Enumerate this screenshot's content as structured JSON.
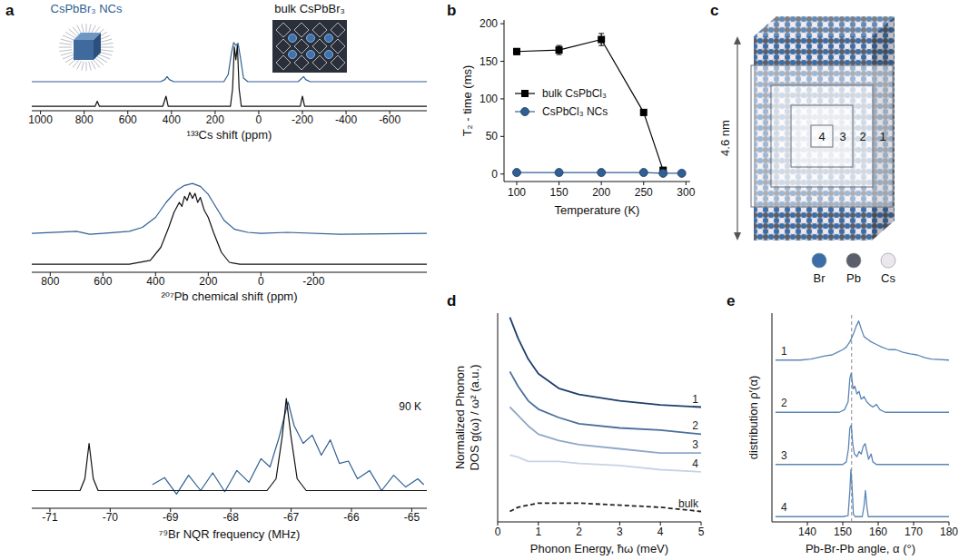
{
  "chart_data": [
    {
      "panel": "a",
      "type": "line",
      "xlabel": "¹³³Cs shift (ppm)",
      "xlim": [
        1040,
        -770
      ],
      "xticks": [
        1000,
        800,
        600,
        400,
        200,
        0,
        -200,
        -400,
        -600
      ],
      "ylim": [
        0,
        1
      ],
      "tick_labels": "x",
      "series": [
        {
          "name": "CsPbBr₃ NCs",
          "color": "#2f5f93",
          "x": [
            1040,
            450,
            430,
            420,
            410,
            390,
            160,
            140,
            125,
            115,
            105,
            95,
            85,
            70,
            50,
            -180,
            -195,
            -205,
            -215,
            -235,
            -770
          ],
          "values": [
            0.4,
            0.4,
            0.43,
            0.47,
            0.43,
            0.4,
            0.4,
            0.5,
            0.8,
            0.94,
            0.9,
            0.93,
            0.75,
            0.45,
            0.4,
            0.4,
            0.44,
            0.47,
            0.43,
            0.4,
            0.4
          ]
        },
        {
          "name": "bulk CsPbBr₃",
          "color": "#111111",
          "x": [
            1040,
            750,
            740,
            730,
            440,
            425,
            415,
            130,
            120,
            112,
            105,
            98,
            90,
            80,
            -190,
            -200,
            -210,
            -770
          ],
          "values": [
            0.06,
            0.06,
            0.13,
            0.06,
            0.06,
            0.2,
            0.06,
            0.06,
            0.3,
            0.88,
            0.7,
            0.9,
            0.3,
            0.06,
            0.06,
            0.2,
            0.06,
            0.06
          ]
        }
      ]
    },
    {
      "type": "line",
      "xlabel": "²⁰⁷Pb chemical shift (ppm)",
      "xlim": [
        870,
        -630
      ],
      "xticks": [
        800,
        600,
        400,
        200,
        0,
        -200
      ],
      "ylim": [
        0,
        1
      ],
      "tick_labels": "x",
      "series": [
        {
          "color": "#2f5f93",
          "x": [
            870,
            700,
            650,
            600,
            500,
            450,
            400,
            360,
            320,
            290,
            260,
            230,
            200,
            170,
            140,
            100,
            50,
            0,
            -100,
            -300,
            -630
          ],
          "values": [
            0.39,
            0.41,
            0.38,
            0.39,
            0.41,
            0.45,
            0.55,
            0.7,
            0.82,
            0.87,
            0.89,
            0.86,
            0.78,
            0.65,
            0.52,
            0.43,
            0.4,
            0.39,
            0.4,
            0.38,
            0.39
          ]
        },
        {
          "color": "#111111",
          "x": [
            870,
            500,
            420,
            380,
            350,
            330,
            310,
            300,
            290,
            280,
            270,
            260,
            250,
            240,
            230,
            215,
            200,
            180,
            150,
            120,
            80,
            -630
          ],
          "values": [
            0.08,
            0.08,
            0.12,
            0.25,
            0.45,
            0.6,
            0.7,
            0.66,
            0.76,
            0.72,
            0.8,
            0.74,
            0.79,
            0.7,
            0.75,
            0.62,
            0.55,
            0.4,
            0.2,
            0.1,
            0.08,
            0.08
          ]
        }
      ]
    },
    {
      "type": "line",
      "xlabel": "⁷⁹Br NQR frequency (MHz)",
      "xlim": [
        -71.3,
        -64.75
      ],
      "xticks": [
        -71,
        -70,
        -69,
        -68,
        -67,
        -66,
        -65
      ],
      "ylim": [
        0,
        1
      ],
      "tick_labels": "x",
      "annotations": [
        "90 K"
      ],
      "series": [
        {
          "color": "#2f5f93",
          "x": [
            -69.3,
            -69.1,
            -68.9,
            -68.7,
            -68.5,
            -68.3,
            -68.1,
            -67.9,
            -67.7,
            -67.5,
            -67.35,
            -67.2,
            -67.05,
            -66.95,
            -66.8,
            -66.65,
            -66.5,
            -66.35,
            -66.2,
            -66.05,
            -65.9,
            -65.7,
            -65.5,
            -65.3,
            -65.1,
            -64.9,
            -64.8
          ],
          "values": [
            0.2,
            0.26,
            0.12,
            0.28,
            0.15,
            0.3,
            0.14,
            0.32,
            0.22,
            0.42,
            0.35,
            0.6,
            0.9,
            0.7,
            0.55,
            0.62,
            0.45,
            0.58,
            0.38,
            0.4,
            0.25,
            0.32,
            0.15,
            0.28,
            0.18,
            0.25,
            0.2
          ]
        },
        {
          "color": "#111111",
          "x": [
            -71.3,
            -70.5,
            -70.42,
            -70.35,
            -70.28,
            -70.2,
            -67.4,
            -67.25,
            -67.15,
            -67.08,
            -67.0,
            -66.9,
            -66.75,
            -64.75
          ],
          "values": [
            0.15,
            0.15,
            0.25,
            0.55,
            0.25,
            0.15,
            0.15,
            0.25,
            0.6,
            0.93,
            0.6,
            0.25,
            0.15,
            0.15
          ]
        }
      ]
    },
    {
      "panel": "b",
      "type": "scatter",
      "xlabel": "Temperature (K)",
      "ylabel": "T₂ - time (ms)",
      "xlim": [
        85,
        305
      ],
      "ylim": [
        -10,
        205
      ],
      "xticks": [
        100,
        150,
        200,
        250,
        300
      ],
      "yticks": [
        0,
        50,
        100,
        150,
        200
      ],
      "legend": "center left",
      "series": [
        {
          "name": "bulk CsPbCl₃",
          "color": "#000000",
          "marker": "square",
          "line_style": "solid",
          "x": [
            100,
            150,
            200,
            250,
            273
          ],
          "values": [
            163,
            165,
            179,
            82,
            5
          ],
          "errors": [
            4,
            6,
            8,
            4,
            2
          ]
        },
        {
          "name": "CsPbCl₃ NCs",
          "color": "#2f5f93",
          "marker": "circle",
          "line_style": "solid",
          "x": [
            100,
            150,
            200,
            250,
            273,
            295
          ],
          "values": [
            2,
            2,
            2,
            2,
            1,
            1
          ]
        }
      ]
    },
    {
      "panel": "d",
      "type": "line",
      "xlabel": "Phonon Energy, ħω (meV)",
      "ylabel": [
        "Normalized Phonon",
        "DOS g(ω) / ω² (a.u.)"
      ],
      "xlim": [
        0,
        5
      ],
      "xticks": [
        0,
        1,
        2,
        3,
        4,
        5
      ],
      "ylim": [
        0,
        1
      ],
      "tick_labels": "x",
      "x": [
        0.3,
        0.5,
        0.75,
        1,
        1.5,
        2,
        3,
        4,
        5
      ],
      "series": [
        {
          "name": "1",
          "color": "#1f3f6b",
          "line_style": "solid",
          "values": [
            0.98,
            0.88,
            0.78,
            0.71,
            0.64,
            0.61,
            0.58,
            0.56,
            0.55
          ]
        },
        {
          "name": "2",
          "color": "#4a6f9c",
          "line_style": "solid",
          "values": [
            0.72,
            0.65,
            0.58,
            0.54,
            0.5,
            0.47,
            0.45,
            0.44,
            0.42
          ]
        },
        {
          "name": "3",
          "color": "#8ea8c9",
          "line_style": "solid",
          "values": [
            0.55,
            0.51,
            0.46,
            0.42,
            0.39,
            0.37,
            0.35,
            0.33,
            0.33
          ]
        },
        {
          "name": "4",
          "color": "#c6d4e6",
          "line_style": "solid",
          "values": [
            0.32,
            0.31,
            0.29,
            0.29,
            0.29,
            0.28,
            0.27,
            0.25,
            0.24
          ]
        },
        {
          "name": "bulk",
          "color": "#222222",
          "line_style": "dashed",
          "values": [
            0.05,
            0.07,
            0.08,
            0.09,
            0.09,
            0.09,
            0.08,
            0.07,
            0.05
          ]
        }
      ]
    },
    {
      "panel": "e",
      "type": "line",
      "xlabel": "Pb-Br-Pb angle, α (°)",
      "ylabel": "distribution ρ′(α)",
      "xlim": [
        130,
        180
      ],
      "xticks": [
        140,
        150,
        160,
        170,
        180
      ],
      "ylim": [
        0,
        4
      ],
      "tick_labels": "x",
      "color": "#5a86b5",
      "vline": 152.5,
      "series": [
        {
          "name": "1",
          "x": [
            131,
            138,
            141,
            143,
            145,
            147,
            148.5,
            150,
            151,
            152,
            153,
            153.8,
            154.5,
            155.2,
            156,
            157,
            158,
            159.5,
            161,
            163,
            165,
            167,
            169,
            171,
            173,
            175,
            180
          ],
          "values": [
            3.1,
            3.1,
            3.12,
            3.15,
            3.18,
            3.2,
            3.25,
            3.3,
            3.35,
            3.45,
            3.6,
            3.75,
            3.85,
            3.7,
            3.55,
            3.5,
            3.45,
            3.4,
            3.35,
            3.3,
            3.3,
            3.25,
            3.22,
            3.2,
            3.15,
            3.12,
            3.1
          ]
        },
        {
          "name": "2",
          "x": [
            131,
            149,
            150.5,
            151.5,
            152,
            152.4,
            152.9,
            153.4,
            154,
            154.6,
            155.2,
            156,
            156.8,
            157.5,
            158.5,
            159.5,
            160.5,
            162,
            180
          ],
          "values": [
            2.1,
            2.1,
            2.15,
            2.3,
            2.75,
            2.85,
            2.55,
            2.6,
            2.45,
            2.5,
            2.35,
            2.4,
            2.3,
            2.25,
            2.2,
            2.25,
            2.15,
            2.1,
            2.1
          ]
        },
        {
          "name": "3",
          "x": [
            131,
            150,
            151,
            151.6,
            152,
            152.4,
            152.8,
            153.3,
            154,
            154.6,
            155.2,
            155.8,
            156.3,
            156.8,
            157.3,
            158,
            158.5,
            159.5,
            180
          ],
          "values": [
            1.1,
            1.1,
            1.15,
            1.4,
            1.8,
            1.85,
            1.5,
            1.3,
            1.25,
            1.35,
            1.3,
            1.45,
            1.5,
            1.35,
            1.2,
            1.3,
            1.15,
            1.1,
            1.1
          ]
        },
        {
          "name": "4",
          "x": [
            131,
            150,
            151.5,
            152,
            152.3,
            152.6,
            153,
            153.5,
            155.5,
            156,
            156.4,
            156.8,
            157.2,
            180
          ],
          "values": [
            0.1,
            0.1,
            0.12,
            0.6,
            1.0,
            0.7,
            0.15,
            0.1,
            0.1,
            0.3,
            0.6,
            0.3,
            0.1,
            0.1
          ]
        }
      ]
    }
  ],
  "illustrations": {
    "panel": "c",
    "size_label": "4.6 nm",
    "shells": [
      "1",
      "2",
      "3",
      "4"
    ],
    "atoms": [
      {
        "name": "Br",
        "color": "#3b6ea8"
      },
      {
        "name": "Pb",
        "color": "#5a5f6b"
      },
      {
        "name": "Cs",
        "color": "#ece6ef"
      }
    ]
  }
}
